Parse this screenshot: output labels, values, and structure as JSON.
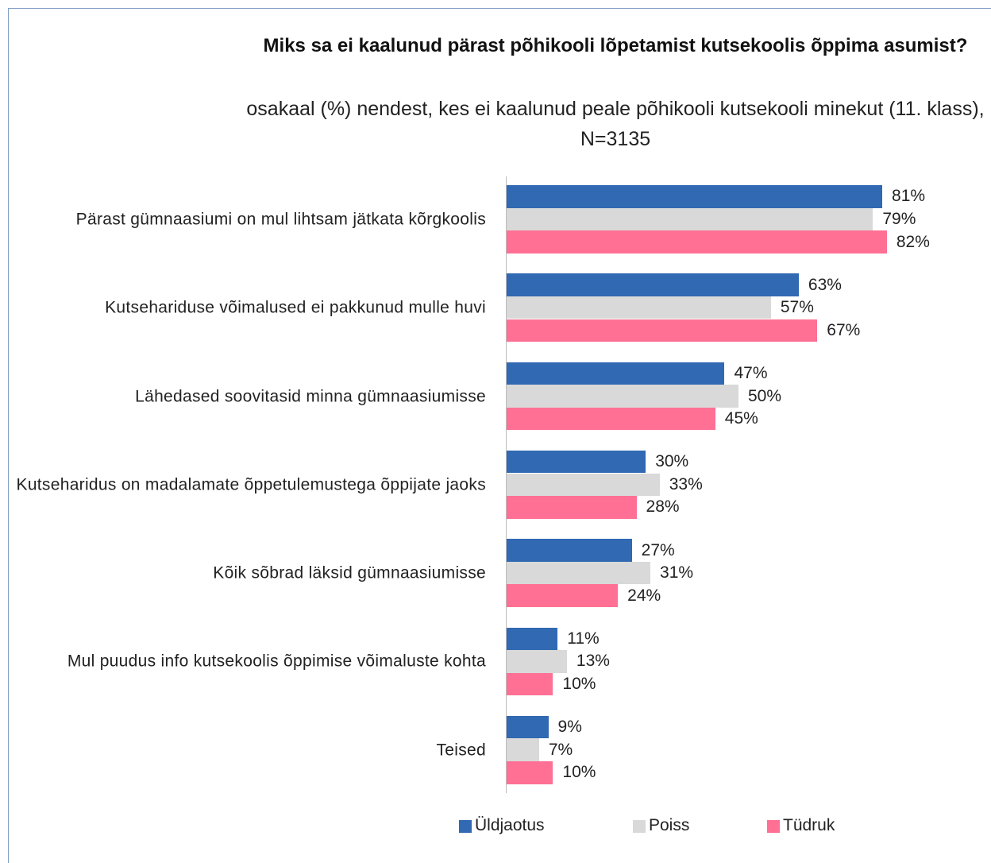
{
  "chart_data": {
    "type": "bar",
    "orientation": "horizontal",
    "title": "Miks sa ei kaalunud pärast põhikooli lõpetamist kutsekoolis õppima asumist?",
    "subtitle": "osakaal (%) nendest, kes ei kaalunud peale põhikooli kutsekooli minekut (11. klass), N=3135",
    "categories": [
      "Pärast gümnaasiumi on mul lihtsam jätkata kõrgkoolis",
      "Kutsehariduse võimalused ei pakkunud mulle huvi",
      "Lähedased soovitasid minna gümnaasiumisse",
      "Kutseharidus on madalamate õppetulemustega õppijate jaoks",
      "Kõik sõbrad läksid gümnaasiumisse",
      "Mul puudus info kutsekoolis õppimise võimaluste kohta",
      "Teised"
    ],
    "series": [
      {
        "name": "Üldjaotus",
        "color": "#3169b3",
        "values": [
          81,
          63,
          47,
          30,
          27,
          11,
          9
        ],
        "value_labels": [
          "81%",
          "63%",
          "47%",
          "30%",
          "27%",
          "11%",
          "9%"
        ]
      },
      {
        "name": "Poiss",
        "color": "#d9d9d9",
        "values": [
          79,
          57,
          50,
          33,
          31,
          13,
          7
        ],
        "value_labels": [
          "79%",
          "57%",
          "50%",
          "33%",
          "31%",
          "13%",
          "7%"
        ]
      },
      {
        "name": "Tüdruk",
        "color": "#ff7094",
        "values": [
          82,
          67,
          45,
          28,
          24,
          10,
          10
        ],
        "value_labels": [
          "82%",
          "67%",
          "45%",
          "28%",
          "24%",
          "10%",
          "10%"
        ]
      }
    ],
    "legend": "bottom"
  }
}
